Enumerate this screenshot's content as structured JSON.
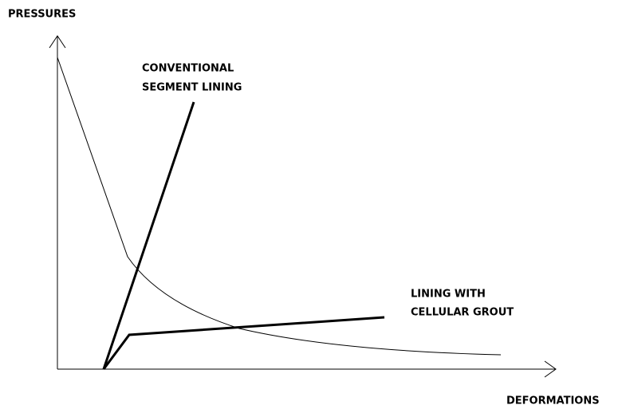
{
  "axes": {
    "y_label": "PRESSURES",
    "x_label": "DEFORMATIONS"
  },
  "curves": [
    {
      "label_lines": [
        "CONVENTIONAL",
        "SEGMENT LINING"
      ]
    },
    {
      "label_lines": [
        "LINING WITH",
        "CELLULAR GROUT"
      ]
    }
  ]
}
